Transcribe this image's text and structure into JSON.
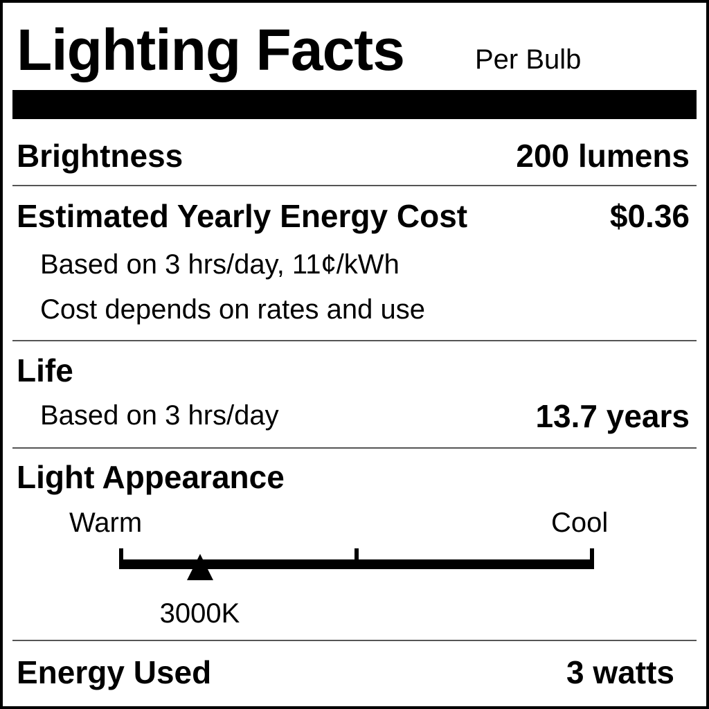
{
  "header": {
    "title": "Lighting Facts",
    "subtitle": "Per Bulb"
  },
  "brightness": {
    "label": "Brightness",
    "value": "200 lumens"
  },
  "energy_cost": {
    "label": "Estimated Yearly Energy Cost",
    "value": "$0.36",
    "note1": "Based on 3 hrs/day, 11¢/kWh",
    "note2": "Cost depends on rates and use"
  },
  "life": {
    "label": "Life",
    "note": "Based on 3 hrs/day",
    "value": "13.7 years"
  },
  "light_appearance": {
    "label": "Light Appearance",
    "warm_label": "Warm",
    "cool_label": "Cool",
    "value": "3000K",
    "scale_position_fraction": 0.17
  },
  "energy_used": {
    "label": "Energy Used",
    "value": "3 watts"
  }
}
